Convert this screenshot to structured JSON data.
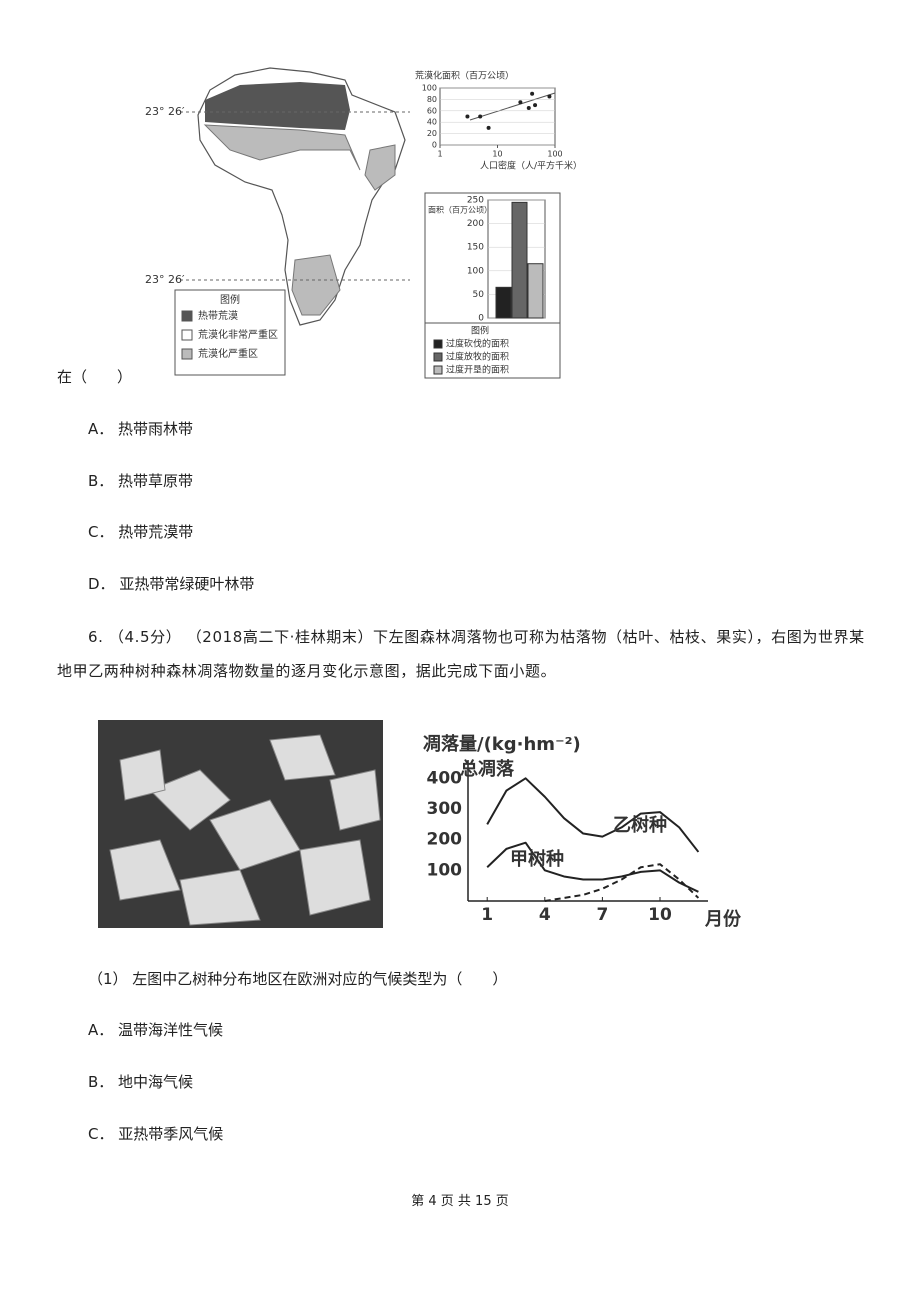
{
  "figure1": {
    "lat_north": "23° 26′",
    "lat_south": "23° 26′",
    "map_legend": {
      "title": "图例",
      "items": [
        "热带荒漠",
        "荒漠化非常严重区",
        "荒漠化严重区"
      ],
      "colors": [
        "#555555",
        "#ffffff",
        "#bbbbbb"
      ]
    },
    "scatter": {
      "type": "scatter",
      "title": "荒漠化面积（百万公顷）",
      "xlabel": "人口密度（人/平方千米）",
      "log_x": true,
      "xlim": [
        1,
        100
      ],
      "xticks": [
        1,
        10,
        100
      ],
      "ylim": [
        0,
        100
      ],
      "yticks": [
        0,
        20,
        40,
        60,
        80,
        100
      ],
      "x": [
        3,
        5,
        7,
        25,
        35,
        40,
        45,
        80
      ],
      "y": [
        50,
        50,
        30,
        75,
        65,
        90,
        70,
        85
      ]
    },
    "bar": {
      "type": "bar",
      "ylabel": "面积（百万公顷）",
      "ylim": [
        0,
        250
      ],
      "yticks": [
        0,
        50,
        100,
        150,
        200,
        250
      ],
      "legend_title": "图例",
      "series": [
        {
          "name": "过度砍伐的面积",
          "color": "#222222",
          "value": 65
        },
        {
          "name": "过度放牧的面积",
          "color": "#666666",
          "value": 245
        },
        {
          "name": "过度开垦的面积",
          "color": "#bbbbbb",
          "value": 115
        }
      ]
    }
  },
  "q5_tail": "在（　　）",
  "q5_options": [
    "A． 热带雨林带",
    "B． 热带草原带",
    "C． 热带荒漠带",
    "D． 亚热带常绿硬叶林带"
  ],
  "q6_stem": "6. （4.5分） （2018高二下·桂林期末）下左图森林凋落物也可称为枯落物（枯叶、枯枝、果实），右图为世界某地甲乙两种树种森林凋落物数量的逐月变化示意图，据此完成下面小题。",
  "figure2": {
    "type": "line",
    "ylabel": "凋落量/(kg·hm⁻²)",
    "xlabel": "月份",
    "x": [
      1,
      2,
      3,
      4,
      5,
      6,
      7,
      8,
      9,
      10,
      11,
      12
    ],
    "xlim": [
      0,
      12.5
    ],
    "xticks": [
      1,
      4,
      7,
      10
    ],
    "ylim": [
      0,
      450
    ],
    "yticks": [
      100,
      200,
      300,
      400
    ],
    "series": [
      {
        "name": "总凋落",
        "color": "#222222",
        "values": [
          250,
          360,
          400,
          340,
          270,
          220,
          210,
          240,
          285,
          290,
          240,
          160
        ]
      },
      {
        "name": "甲树种",
        "color": "#222222",
        "values": [
          110,
          170,
          190,
          100,
          80,
          70,
          70,
          80,
          95,
          100,
          60,
          30
        ]
      },
      {
        "name": "乙树种",
        "color": "#222222",
        "dashed": true,
        "values": [
          null,
          null,
          null,
          0,
          10,
          20,
          40,
          70,
          110,
          120,
          70,
          10
        ]
      }
    ]
  },
  "q6_sub1": "（1） 左图中乙树种分布地区在欧洲对应的气候类型为（　　）",
  "q6_sub1_options": [
    "A． 温带海洋性气候",
    "B． 地中海气候",
    "C． 亚热带季风气候"
  ],
  "footer": "第 4 页 共 15 页"
}
